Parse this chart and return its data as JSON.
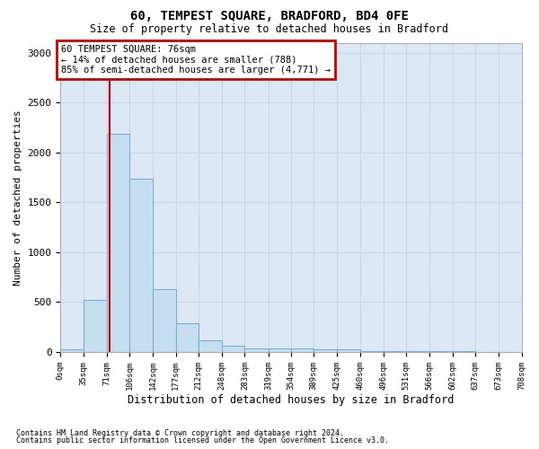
{
  "title": "60, TEMPEST SQUARE, BRADFORD, BD4 0FE",
  "subtitle": "Size of property relative to detached houses in Bradford",
  "xlabel": "Distribution of detached houses by size in Bradford",
  "ylabel": "Number of detached properties",
  "footnote1": "Contains HM Land Registry data © Crown copyright and database right 2024.",
  "footnote2": "Contains public sector information licensed under the Open Government Licence v3.0.",
  "annotation_title": "60 TEMPEST SQUARE: 76sqm",
  "annotation_line1": "← 14% of detached houses are smaller (788)",
  "annotation_line2": "85% of semi-detached houses are larger (4,771) →",
  "property_line_x": 76,
  "bar_edges": [
    0,
    35,
    71,
    106,
    142,
    177,
    212,
    248,
    283,
    319,
    354,
    389,
    425,
    460,
    496,
    531,
    566,
    602,
    637,
    673,
    708
  ],
  "bar_heights": [
    30,
    520,
    2190,
    1740,
    630,
    290,
    120,
    65,
    40,
    35,
    35,
    30,
    25,
    10,
    8,
    5,
    5,
    5,
    3,
    3
  ],
  "bar_color": "#c5dff0",
  "bar_edge_color": "#7bafd4",
  "line_color": "#cc0000",
  "annotation_box_edgecolor": "#cc0000",
  "grid_color": "#c8d8e8",
  "bg_color": "#dce8f4",
  "ylim": [
    0,
    3100
  ],
  "yticks": [
    0,
    500,
    1000,
    1500,
    2000,
    2500,
    3000
  ]
}
